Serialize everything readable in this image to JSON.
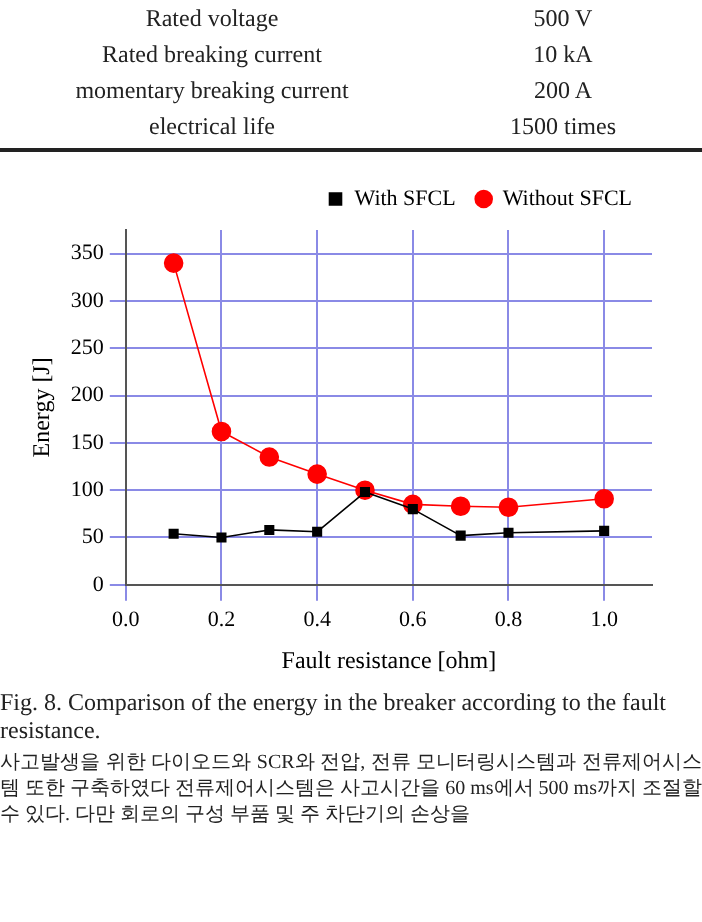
{
  "chart_data": {
    "type": "line",
    "xlabel": "Fault resistance [ohm]",
    "ylabel": "Energy [J]",
    "x": [
      0.1,
      0.2,
      0.3,
      0.4,
      0.5,
      0.6,
      0.7,
      0.8,
      1.0
    ],
    "series": [
      {
        "name": "With SFCL",
        "color": "#000000",
        "marker": "square",
        "values": [
          54,
          50,
          58,
          56,
          98,
          80,
          52,
          55,
          57
        ]
      },
      {
        "name": "Without SFCL",
        "color": "#ff0000",
        "marker": "circle",
        "values": [
          340,
          162,
          135,
          117,
          100,
          85,
          83,
          82,
          91
        ]
      }
    ],
    "xlim": [
      0,
      1.1
    ],
    "xticks": [
      {
        "value": 0,
        "label": "0.0"
      },
      0.2,
      0.4,
      0.6,
      0.8,
      {
        "value": 1,
        "label": "1.0"
      }
    ],
    "ylim": [
      0,
      375
    ],
    "yticks": [
      0,
      50,
      100,
      150,
      200,
      250,
      300,
      350
    ],
    "grid": true,
    "legend": "top right",
    "annotations": [
      "Rated voltage",
      "500 V",
      "Rated breaking current",
      "10 kA",
      "momentary breaking current",
      "200 A",
      "electrical life",
      "1500 times",
      "Fig. 8. Comparison of the energy in the breaker according to the fault resistance.",
      "사고발생을 위한 다이오드와 SCR와 전압, 전류 모니터링시스템과 전류제어시스템 또한 구축하였다 전류제어시스템은 사고시간을 60 ms에서 500 ms까지 조절할 수 있다. 다만 회로의 구성 부품 및 주 차단기의 손상을"
    ]
  }
}
